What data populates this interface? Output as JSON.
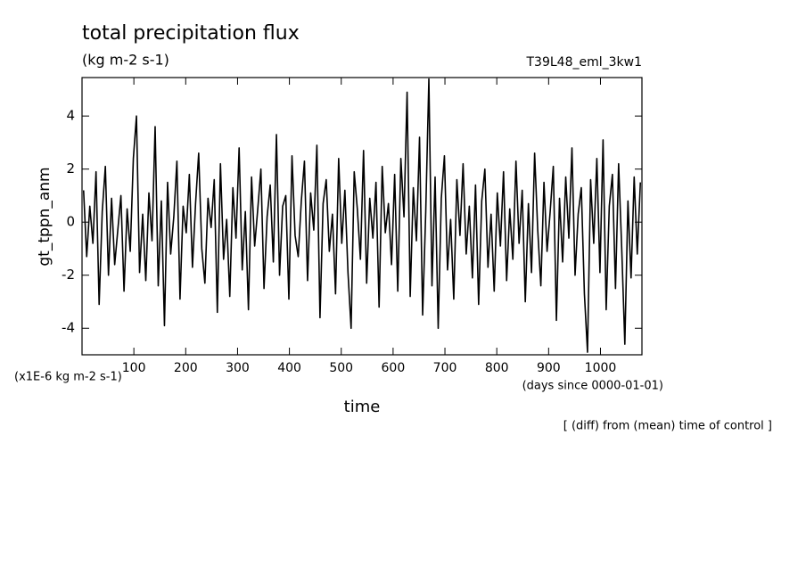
{
  "chart_data": {
    "type": "line",
    "title": "total precipitation flux",
    "subtitle": "(kg m-2 s-1)",
    "run_label": "T39L48_eml_3kw1",
    "y_label": "gt_tppn_anm",
    "y_unit": "(x1E-6 kg m-2 s-1)",
    "x_label": "time",
    "x_unit": "(days since 0000-01-01)",
    "annotation": "[ (diff) from (mean) time of control ]",
    "xlim": [
      0,
      1080
    ],
    "xticks": [
      100,
      200,
      300,
      400,
      500,
      600,
      700,
      800,
      900,
      1000
    ],
    "ylim": [
      -5,
      5.45
    ],
    "yticks": [
      -4,
      -2,
      0,
      2,
      4
    ],
    "x": [
      3,
      9,
      15,
      21,
      27,
      33,
      39,
      45,
      51,
      57,
      63,
      69,
      75,
      81,
      87,
      93,
      99,
      105,
      111,
      117,
      123,
      129,
      135,
      141,
      147,
      153,
      159,
      165,
      171,
      177,
      183,
      189,
      195,
      201,
      207,
      213,
      219,
      225,
      231,
      237,
      243,
      249,
      255,
      261,
      267,
      273,
      279,
      285,
      291,
      297,
      303,
      309,
      315,
      321,
      327,
      333,
      339,
      345,
      351,
      357,
      363,
      369,
      375,
      381,
      387,
      393,
      399,
      405,
      411,
      417,
      423,
      429,
      435,
      441,
      447,
      453,
      459,
      465,
      471,
      477,
      483,
      489,
      495,
      501,
      507,
      513,
      519,
      525,
      531,
      537,
      543,
      549,
      555,
      561,
      567,
      573,
      579,
      585,
      591,
      597,
      603,
      609,
      615,
      621,
      627,
      633,
      639,
      645,
      651,
      657,
      663,
      669,
      675,
      681,
      687,
      693,
      699,
      705,
      711,
      717,
      723,
      729,
      735,
      741,
      747,
      753,
      759,
      765,
      771,
      777,
      783,
      789,
      795,
      801,
      807,
      813,
      819,
      825,
      831,
      837,
      843,
      849,
      855,
      861,
      867,
      873,
      879,
      885,
      891,
      897,
      903,
      909,
      915,
      921,
      927,
      933,
      939,
      945,
      951,
      957,
      963,
      969,
      975,
      981,
      987,
      993,
      999,
      1005,
      1011,
      1017,
      1023,
      1029,
      1035,
      1041,
      1047,
      1053,
      1059,
      1065,
      1071,
      1077
    ],
    "series": [
      {
        "color": "#000000",
        "values": [
          1.2,
          -1.3,
          0.6,
          -0.8,
          1.9,
          -3.1,
          0.4,
          2.1,
          -2.0,
          0.9,
          -1.6,
          -0.3,
          1.0,
          -2.6,
          0.5,
          -1.1,
          2.4,
          4.0,
          -1.9,
          0.3,
          -2.2,
          1.1,
          -0.7,
          3.6,
          -2.4,
          0.8,
          -3.9,
          1.5,
          -1.2,
          0.2,
          2.3,
          -2.9,
          0.6,
          -0.4,
          1.8,
          -1.7,
          0.7,
          2.6,
          -1.0,
          -2.3,
          0.9,
          -0.2,
          1.6,
          -3.4,
          2.2,
          -1.4,
          0.1,
          -2.8,
          1.3,
          -0.6,
          2.8,
          -1.8,
          0.4,
          -3.3,
          1.7,
          -0.9,
          0.5,
          2.0,
          -2.5,
          0.2,
          1.4,
          -1.5,
          3.3,
          -2.0,
          0.6,
          1.0,
          -2.9,
          2.5,
          -0.5,
          -1.3,
          0.8,
          2.3,
          -2.2,
          1.1,
          -0.3,
          2.9,
          -3.6,
          0.7,
          1.6,
          -1.1,
          0.3,
          -2.7,
          2.4,
          -0.8,
          1.2,
          -1.9,
          -4.0,
          1.9,
          0.5,
          -1.4,
          2.7,
          -2.3,
          0.9,
          -0.6,
          1.5,
          -3.2,
          2.1,
          -0.4,
          0.7,
          -1.6,
          1.8,
          -2.6,
          2.4,
          0.2,
          4.9,
          -2.8,
          1.3,
          -0.7,
          3.2,
          -3.5,
          0.4,
          5.4,
          -2.4,
          1.7,
          -4.0,
          0.9,
          2.5,
          -1.8,
          0.1,
          -2.9,
          1.6,
          -0.5,
          2.2,
          -1.2,
          0.6,
          -2.1,
          1.4,
          -3.1,
          0.8,
          2.0,
          -1.7,
          0.3,
          -2.6,
          1.1,
          -0.9,
          1.9,
          -2.2,
          0.5,
          -1.4,
          2.3,
          -0.8,
          1.2,
          -3.0,
          0.7,
          -1.9,
          2.6,
          -0.3,
          -2.4,
          1.5,
          -1.1,
          0.4,
          2.1,
          -3.7,
          0.9,
          -1.5,
          1.7,
          -0.6,
          2.8,
          -2.0,
          0.3,
          1.3,
          -2.7,
          -4.9,
          1.6,
          -0.8,
          2.4,
          -1.9,
          3.1,
          -3.3,
          0.6,
          1.8,
          -2.5,
          2.2,
          -1.0,
          -4.6,
          0.8,
          -2.1,
          1.7,
          -1.2,
          1.5
        ]
      }
    ]
  }
}
